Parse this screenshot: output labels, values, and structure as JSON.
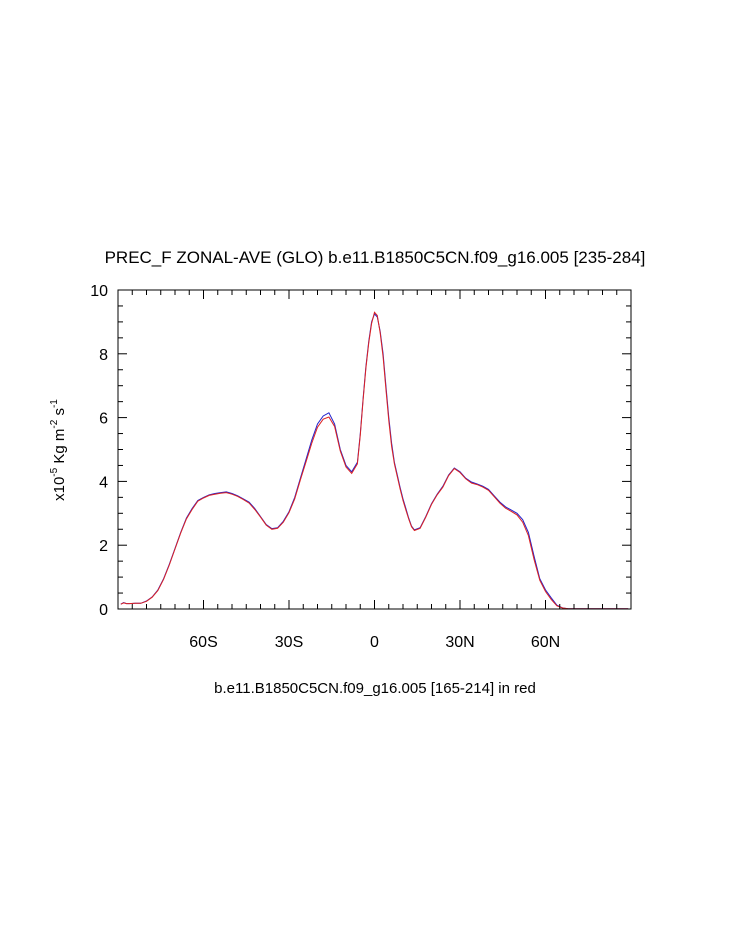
{
  "chart_data": {
    "type": "line",
    "title": "PREC_F ZONAL-AVE (GLO) b.e11.B1850C5CN.f09_g16.005 [235-284]",
    "xlabel": "b.e11.B1850C5CN.f09_g16.005 [165-214] in red",
    "ylabel_base": "x10",
    "ylabel_exp": "-5",
    "ylabel_unit1": " Kg m",
    "ylabel_exp2": "-2",
    "ylabel_unit2": " s",
    "ylabel_exp3": "-1",
    "xlim": [
      -90,
      90
    ],
    "ylim": [
      0,
      10
    ],
    "x_ticks": [
      {
        "value": -60,
        "label": "60S"
      },
      {
        "value": -30,
        "label": "30S"
      },
      {
        "value": 0,
        "label": "0"
      },
      {
        "value": 30,
        "label": "30N"
      },
      {
        "value": 60,
        "label": "60N"
      }
    ],
    "y_ticks": [
      {
        "value": 0,
        "label": "0"
      },
      {
        "value": 2,
        "label": "2"
      },
      {
        "value": 4,
        "label": "4"
      },
      {
        "value": 6,
        "label": "6"
      },
      {
        "value": 8,
        "label": "8"
      },
      {
        "value": 10,
        "label": "10"
      }
    ],
    "x": [
      -89,
      -88,
      -87,
      -86,
      -84,
      -82,
      -80,
      -78,
      -76,
      -74,
      -72,
      -70,
      -68,
      -66,
      -64,
      -62,
      -60,
      -58,
      -56,
      -54,
      -52,
      -50,
      -48,
      -46,
      -44,
      -42,
      -40,
      -38,
      -36,
      -34,
      -32,
      -30,
      -28,
      -26,
      -24,
      -22,
      -20,
      -18,
      -16,
      -14,
      -12,
      -10,
      -8,
      -6,
      -5,
      -4,
      -3,
      -2,
      -1,
      0,
      1,
      2,
      3,
      4,
      5,
      6,
      7,
      8,
      9,
      10,
      11,
      12,
      13,
      14,
      16,
      18,
      20,
      22,
      24,
      26,
      28,
      30,
      32,
      34,
      36,
      38,
      40,
      42,
      44,
      46,
      48,
      50,
      52,
      54,
      56,
      58,
      60,
      62,
      64,
      66,
      68,
      70,
      72,
      74,
      76,
      78,
      80,
      82,
      84,
      86,
      88,
      89
    ],
    "series": [
      {
        "color": "#2222cc",
        "values": [
          0.15,
          0.2,
          0.17,
          0.17,
          0.18,
          0.18,
          0.25,
          0.38,
          0.6,
          0.95,
          1.4,
          1.9,
          2.4,
          2.85,
          3.15,
          3.4,
          3.5,
          3.58,
          3.62,
          3.65,
          3.67,
          3.62,
          3.55,
          3.45,
          3.35,
          3.15,
          2.9,
          2.65,
          2.52,
          2.55,
          2.75,
          3.05,
          3.5,
          4.1,
          4.7,
          5.3,
          5.8,
          6.05,
          6.15,
          5.8,
          5.0,
          4.5,
          4.3,
          4.6,
          5.5,
          6.6,
          7.6,
          8.4,
          9.0,
          9.25,
          9.15,
          8.7,
          8.0,
          7.0,
          6.0,
          5.2,
          4.6,
          4.2,
          3.8,
          3.45,
          3.15,
          2.85,
          2.6,
          2.48,
          2.55,
          2.9,
          3.3,
          3.6,
          3.85,
          4.2,
          4.42,
          4.3,
          4.1,
          3.98,
          3.92,
          3.85,
          3.75,
          3.55,
          3.35,
          3.2,
          3.1,
          3.0,
          2.8,
          2.4,
          1.65,
          0.95,
          0.6,
          0.35,
          0.12,
          0.03,
          0.01,
          0.01,
          0.01,
          0.01,
          0.01,
          0.01,
          0.01,
          0.01,
          0.01,
          0.01,
          0.01,
          0.01
        ]
      },
      {
        "color": "#dd2222",
        "values": [
          0.15,
          0.19,
          0.17,
          0.17,
          0.18,
          0.18,
          0.24,
          0.37,
          0.58,
          0.93,
          1.38,
          1.88,
          2.38,
          2.82,
          3.12,
          3.38,
          3.48,
          3.56,
          3.6,
          3.63,
          3.65,
          3.6,
          3.53,
          3.43,
          3.32,
          3.12,
          2.88,
          2.63,
          2.5,
          2.53,
          2.72,
          3.02,
          3.45,
          4.05,
          4.62,
          5.2,
          5.7,
          5.95,
          6.02,
          5.72,
          4.95,
          4.45,
          4.25,
          4.55,
          5.45,
          6.55,
          7.55,
          8.35,
          8.95,
          9.3,
          9.2,
          8.65,
          7.9,
          6.9,
          5.9,
          5.1,
          4.55,
          4.15,
          3.75,
          3.4,
          3.1,
          2.82,
          2.58,
          2.46,
          2.53,
          2.88,
          3.28,
          3.58,
          3.82,
          4.18,
          4.4,
          4.28,
          4.08,
          3.95,
          3.9,
          3.82,
          3.72,
          3.52,
          3.32,
          3.16,
          3.06,
          2.95,
          2.72,
          2.3,
          1.55,
          0.9,
          0.55,
          0.3,
          0.1,
          0.03,
          0.01,
          0.01,
          0.01,
          0.01,
          0.01,
          0.01,
          0.01,
          0.01,
          0.01,
          0.01,
          0.01,
          0.01
        ]
      }
    ]
  }
}
